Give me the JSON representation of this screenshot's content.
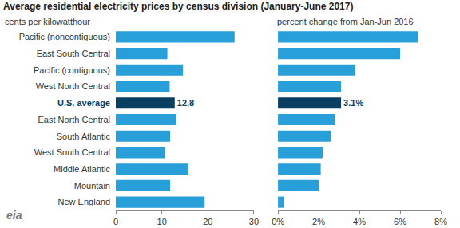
{
  "logo": "eia",
  "chart_data": [
    {
      "type": "bar",
      "title": "Average residential electricity prices by census division (January-June 2017)",
      "subtitle": "cents per kilowatthour",
      "orientation": "horizontal",
      "categories": [
        "Pacific (noncontiguous)",
        "East South Central",
        "Pacific (contiguous)",
        "West North Central",
        "U.S. average",
        "East North Central",
        "South Atlantic",
        "West South Central",
        "Middle Atlantic",
        "Mountain",
        "New England"
      ],
      "values": [
        25.8,
        11.2,
        14.6,
        11.7,
        12.8,
        13.1,
        11.8,
        10.7,
        15.8,
        11.8,
        19.3
      ],
      "value_labels": [
        null,
        null,
        null,
        null,
        "12.8",
        null,
        null,
        null,
        null,
        null,
        null
      ],
      "colors": [
        "#289fd8",
        "#289fd8",
        "#289fd8",
        "#289fd8",
        "#0a3f62",
        "#289fd8",
        "#289fd8",
        "#289fd8",
        "#289fd8",
        "#289fd8",
        "#289fd8"
      ],
      "xlim": [
        0,
        30
      ],
      "xticks": [
        0,
        10,
        20,
        30
      ],
      "grid": false
    },
    {
      "type": "bar",
      "subtitle": "percent change from Jan-Jun 2016",
      "orientation": "horizontal",
      "categories": [
        "Pacific (noncontiguous)",
        "East South Central",
        "Pacific (contiguous)",
        "West North Central",
        "U.S. average",
        "East North Central",
        "South Atlantic",
        "West South Central",
        "Middle Atlantic",
        "Mountain",
        "New England"
      ],
      "values": [
        6.9,
        6.0,
        3.8,
        3.1,
        3.1,
        2.8,
        2.6,
        2.2,
        2.1,
        2.0,
        0.3
      ],
      "value_labels": [
        null,
        null,
        null,
        null,
        "3.1%",
        null,
        null,
        null,
        null,
        null,
        null
      ],
      "colors": [
        "#289fd8",
        "#289fd8",
        "#289fd8",
        "#289fd8",
        "#0a3f62",
        "#289fd8",
        "#289fd8",
        "#289fd8",
        "#289fd8",
        "#289fd8",
        "#289fd8"
      ],
      "xlim": [
        0,
        8
      ],
      "xticks": [
        {
          "value": 0,
          "label": "0%"
        },
        {
          "value": 2,
          "label": "2%"
        },
        {
          "value": 4,
          "label": "4%"
        },
        {
          "value": 6,
          "label": "6%"
        },
        {
          "value": 8,
          "label": "8%"
        }
      ],
      "tick_labels": "x",
      "grid": false
    }
  ]
}
